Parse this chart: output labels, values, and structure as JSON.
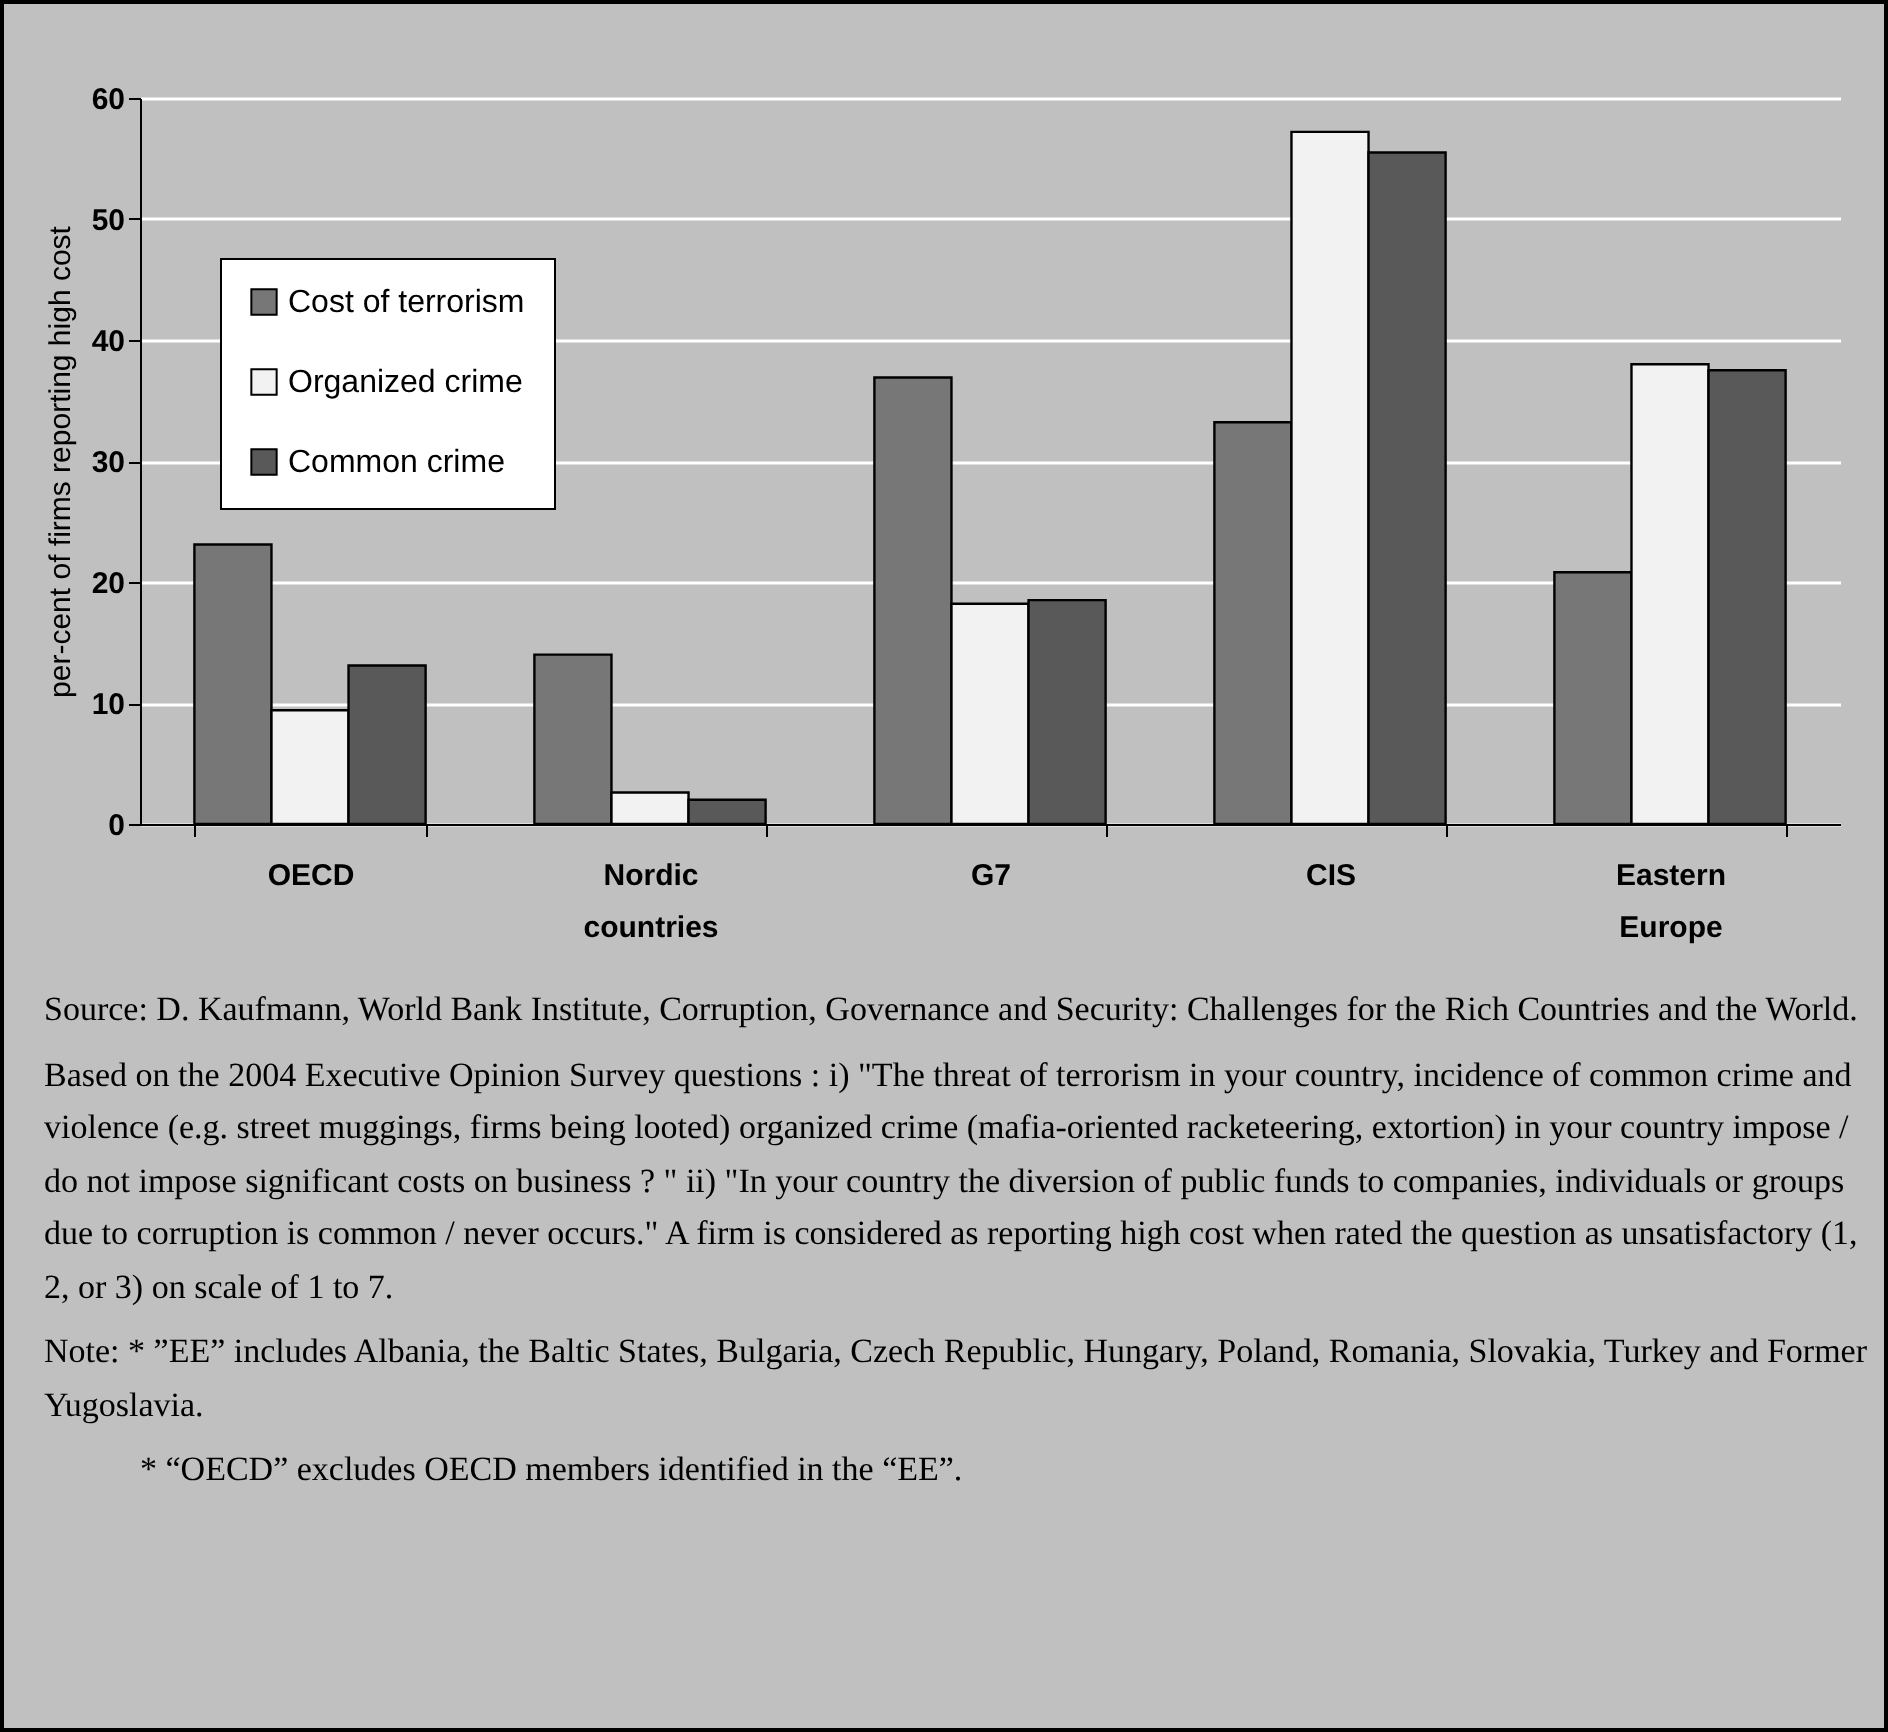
{
  "chart_data": {
    "type": "bar",
    "ylabel": "per-cent of firms reporting high cost",
    "categories": [
      "OECD",
      "Nordic countries",
      "G7",
      "CIS",
      "Eastern Europe"
    ],
    "series": [
      {
        "name": "Cost of terrorism",
        "color": "#777777",
        "values": [
          23.1,
          14.0,
          36.9,
          33.2,
          20.8
        ]
      },
      {
        "name": "Organized crime",
        "color": "#f2f2f2",
        "values": [
          9.4,
          2.6,
          18.2,
          57.2,
          38.0
        ]
      },
      {
        "name": "Common crime",
        "color": "#595959",
        "values": [
          13.1,
          2.0,
          18.5,
          55.5,
          37.5
        ]
      }
    ],
    "ylim": [
      0,
      60
    ],
    "yticks": [
      0,
      10,
      20,
      30,
      40,
      50,
      60
    ],
    "grid": "y",
    "legend": "top left",
    "annotations": [
      "Source: D. Kaufmann, World Bank Institute, Corruption, Governance and Security: Challenges for the Rich Countries and the World.",
      "Based on the 2004 Executive Opinion Survey questions : i) \"The threat of terrorism in your country, incidence of common crime and violence (e.g. street muggings, firms being looted) organized crime (mafia-oriented racketeering, extortion) in your country impose / do not impose significant costs on business ? \" ii) \"In your country the diversion of public funds to companies, individuals or groups due to corruption is common / never occurs.\" A firm is considered as reporting high cost when rated the question as unsatisfactory (1, 2, or 3) on scale of 1 to 7.",
      "Note:  * ”EE” includes Albania, the Baltic States, Bulgaria, Czech Republic, Hungary, Poland, Romania,  Slovakia, Turkey and Former Yugoslavia.",
      "* “OECD” excludes OECD members identified in the “EE”."
    ]
  }
}
